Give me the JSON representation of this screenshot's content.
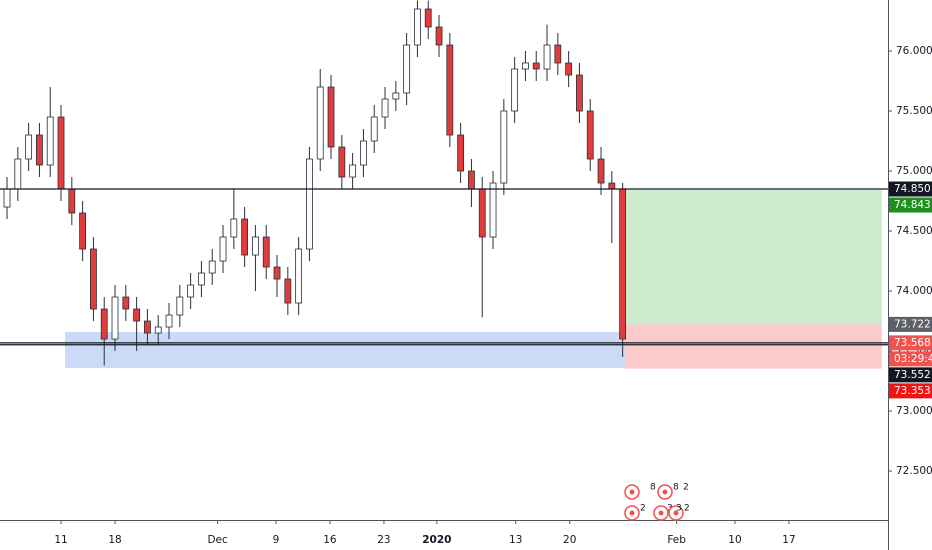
{
  "chart_data": {
    "type": "candlestick",
    "x": [
      -5,
      -4,
      -3,
      -2,
      -1,
      0,
      1,
      2,
      3,
      4,
      5,
      6,
      7,
      8,
      9,
      10,
      11,
      12,
      13,
      14,
      15,
      16,
      17,
      18,
      19,
      20,
      21,
      22,
      23,
      24,
      25,
      26,
      27,
      28,
      29,
      30,
      31,
      32,
      33,
      34,
      35,
      36,
      37,
      38,
      39,
      40,
      41,
      42,
      43,
      44,
      45,
      46,
      47,
      48,
      49,
      50,
      51,
      52
    ],
    "open": [
      74.7,
      74.85,
      75.1,
      75.3,
      75.05,
      75.45,
      74.85,
      74.65,
      74.35,
      73.85,
      73.6,
      73.95,
      73.85,
      73.75,
      73.65,
      73.7,
      73.8,
      73.95,
      74.05,
      74.15,
      74.25,
      74.45,
      74.6,
      74.3,
      74.45,
      74.2,
      74.1,
      73.9,
      74.35,
      75.1,
      75.7,
      75.2,
      74.95,
      75.05,
      75.25,
      75.45,
      75.6,
      75.65,
      76.05,
      76.35,
      76.2,
      76.05,
      75.3,
      75.0,
      74.85,
      74.45,
      74.9,
      75.5,
      75.85,
      75.9,
      75.85,
      76.05,
      75.9,
      75.8,
      75.5,
      75.1,
      74.9,
      74.85
    ],
    "high": [
      74.95,
      75.2,
      75.4,
      75.4,
      75.7,
      75.55,
      74.95,
      74.75,
      74.45,
      73.95,
      74.05,
      74.05,
      73.95,
      73.85,
      73.8,
      73.9,
      74.05,
      74.15,
      74.25,
      74.35,
      74.55,
      74.85,
      74.7,
      74.55,
      74.55,
      74.3,
      74.2,
      74.45,
      75.2,
      75.85,
      75.8,
      75.3,
      75.15,
      75.35,
      75.55,
      75.7,
      75.75,
      76.15,
      76.42,
      76.42,
      76.3,
      76.15,
      75.4,
      75.1,
      74.95,
      75.0,
      75.6,
      75.95,
      76.0,
      76.0,
      76.22,
      76.15,
      76.0,
      75.9,
      75.6,
      75.2,
      75.0,
      74.9
    ],
    "low": [
      74.6,
      74.75,
      75.0,
      74.95,
      74.95,
      74.75,
      74.55,
      74.25,
      73.75,
      73.38,
      73.5,
      73.75,
      73.5,
      73.55,
      73.55,
      73.6,
      73.7,
      73.85,
      73.95,
      74.05,
      74.15,
      74.35,
      74.2,
      74.0,
      74.1,
      73.95,
      73.8,
      73.8,
      74.25,
      75.0,
      75.1,
      74.85,
      74.85,
      74.95,
      75.15,
      75.35,
      75.5,
      75.55,
      75.95,
      76.1,
      75.95,
      75.2,
      74.9,
      74.7,
      73.78,
      74.35,
      74.8,
      75.4,
      75.75,
      75.75,
      75.75,
      75.8,
      75.7,
      75.4,
      75.0,
      74.8,
      74.4,
      73.45
    ],
    "close": [
      74.85,
      75.1,
      75.3,
      75.05,
      75.45,
      74.85,
      74.65,
      74.35,
      73.85,
      73.6,
      73.95,
      73.85,
      73.75,
      73.65,
      73.7,
      73.8,
      73.95,
      74.05,
      74.15,
      74.25,
      74.45,
      74.6,
      74.3,
      74.45,
      74.2,
      74.1,
      73.9,
      74.35,
      75.1,
      75.7,
      75.2,
      74.95,
      75.05,
      75.25,
      75.45,
      75.6,
      75.65,
      76.05,
      76.35,
      76.2,
      76.05,
      75.3,
      75.0,
      74.85,
      74.45,
      74.9,
      75.5,
      75.85,
      75.9,
      75.85,
      76.05,
      75.9,
      75.8,
      75.5,
      75.1,
      74.9,
      74.85,
      73.6
    ],
    "up_color": "#ffffff",
    "down_color": "#e03c3c",
    "outline_color": "#2a2e39",
    "xlim": [
      -5.65,
      76.57
    ],
    "xticks": [
      {
        "value": 0,
        "label": "11"
      },
      {
        "value": 5,
        "label": "18"
      },
      {
        "value": 14.5,
        "label": "Dec"
      },
      {
        "value": 19.9,
        "label": "9"
      },
      {
        "value": 24.9,
        "label": "16"
      },
      {
        "value": 29.9,
        "label": "23"
      },
      {
        "value": 34.8,
        "label": "2020"
      },
      {
        "value": 42.1,
        "label": "13"
      },
      {
        "value": 47.1,
        "label": "20"
      },
      {
        "value": 57,
        "label": "Feb"
      },
      {
        "value": 62.4,
        "label": "10"
      },
      {
        "value": 67.4,
        "label": "17"
      }
    ],
    "ylim": [
      72.092,
      76.425
    ],
    "yticks": [
      {
        "value": 76,
        "label": "76.000"
      },
      {
        "value": 75.5,
        "label": "75.500"
      },
      {
        "value": 75,
        "label": "75.000"
      },
      {
        "value": 74.5,
        "label": "74.500"
      },
      {
        "value": 74,
        "label": "74.000"
      },
      {
        "value": 73.5,
        "label": "73.500"
      },
      {
        "value": 73,
        "label": "73.000"
      },
      {
        "value": 72.5,
        "label": "72.500"
      }
    ],
    "hlines": [
      74.85,
      73.568,
      73.552
    ],
    "zone": {
      "x": [
        0.37,
        52.2
      ],
      "y": [
        73.358,
        73.658
      ],
      "color": "#a9c2f0"
    },
    "position": {
      "x": [
        52.2,
        76.0
      ],
      "entry": 73.722,
      "target": 74.843,
      "stop": 73.353,
      "profit_color": "#bfe6bf",
      "loss_color": "#f7a8a8"
    },
    "price_labels": [
      {
        "label": "74.850",
        "value": 74.85,
        "color": "#131722"
      },
      {
        "label": "74.843",
        "value": 74.843,
        "color": "#1e8f1e"
      },
      {
        "label": "73.722",
        "value": 73.722,
        "color": "#5d606b"
      },
      {
        "label": "73.568",
        "value": 73.568,
        "color": "#ef5350"
      },
      {
        "label": "03:29:46",
        "color": "#ef5350"
      },
      {
        "label": "73.552",
        "value": 73.552,
        "color": "#131722"
      },
      {
        "label": "73.353",
        "value": 73.353,
        "color": "#f01414"
      }
    ],
    "events": [
      "8",
      "8",
      "2",
      "2",
      "3",
      "3",
      "2"
    ]
  }
}
